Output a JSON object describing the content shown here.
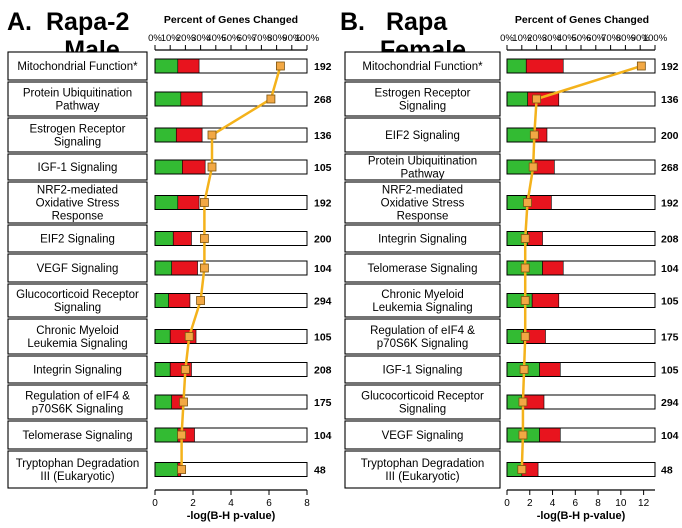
{
  "colors": {
    "up": "#33bb33",
    "down": "#e8141e",
    "line": "#f4b21b",
    "marker": "#f2a844",
    "marker_edge": "#7a5210",
    "outline": "#000000"
  },
  "chart_data": [
    {
      "type": "bar",
      "panel_label": "A.",
      "title_line1": "Rapa-2",
      "title_line2": "Male",
      "top_axis_label": "Percent of Genes Changed",
      "top_ticks": [
        "0%",
        "10%",
        "20%",
        "30%",
        "40%",
        "50%",
        "60%",
        "70%",
        "80%",
        "90%",
        "100%"
      ],
      "xlabel": "-log(B-H p-value)",
      "bottom_ticks": [
        "0",
        "2",
        "4",
        "6",
        "8"
      ],
      "bottom_xlim": [
        0,
        8
      ],
      "grid": false,
      "categories": [
        "Mitochondrial Function*",
        "Protein Ubiquitination Pathway",
        "Estrogen Receptor Signaling",
        "IGF-1 Signaling",
        "NRF2-mediated Oxidative Stress Response",
        "EIF2 Signaling",
        "VEGF Signaling",
        "Glucocorticoid Receptor Signaling",
        "Chronic Myeloid Leukemia Signaling",
        "Integrin Signaling",
        "Regulation of eIF4 & p70S6K Signaling",
        "Telomerase Signaling",
        "Tryptophan Degradation III (Eukaryotic)"
      ],
      "category_lines": [
        [
          "Mitochondrial Function*"
        ],
        [
          "Protein Ubiquitination",
          "Pathway"
        ],
        [
          "Estrogen Receptor",
          "Signaling"
        ],
        [
          "IGF-1 Signaling"
        ],
        [
          "NRF2-mediated",
          "Oxidative Stress",
          "Response"
        ],
        [
          "EIF2 Signaling"
        ],
        [
          "VEGF Signaling"
        ],
        [
          "Glucocorticoid Receptor",
          "Signaling"
        ],
        [
          "Chronic Myeloid",
          "Leukemia Signaling"
        ],
        [
          "Integrin Signaling"
        ],
        [
          "Regulation of eIF4 &",
          "p70S6K Signaling"
        ],
        [
          "Telomerase Signaling"
        ],
        [
          "Tryptophan Degradation",
          "III (Eukaryotic)"
        ]
      ],
      "gene_counts": [
        192,
        268,
        136,
        105,
        192,
        200,
        104,
        294,
        105,
        208,
        175,
        104,
        48
      ],
      "series": [
        {
          "name": "up",
          "unit": "percent",
          "values": [
            15,
            17,
            14,
            18,
            15,
            12,
            11,
            9,
            10,
            10,
            11,
            15,
            15
          ]
        },
        {
          "name": "down",
          "unit": "percent",
          "values": [
            14,
            14,
            17,
            15,
            14,
            12,
            17,
            14,
            17,
            14,
            8,
            11,
            2
          ]
        },
        {
          "name": "neg_log_p",
          "unit": "-log(B-H p-value)",
          "values": [
            6.6,
            6.1,
            3.0,
            3.0,
            2.6,
            2.6,
            2.6,
            2.4,
            1.8,
            1.6,
            1.5,
            1.4,
            1.4
          ]
        }
      ]
    },
    {
      "type": "bar",
      "panel_label": "B.",
      "title_line1": "Rapa",
      "title_line2": "Female",
      "top_axis_label": "Percent of Genes Changed",
      "top_ticks": [
        "0%",
        "10%",
        "20%",
        "30%",
        "40%",
        "50%",
        "60%",
        "70%",
        "80%",
        "90%",
        "100%"
      ],
      "xlabel": "-log(B-H p-value)",
      "bottom_ticks": [
        "0",
        "2",
        "4",
        "6",
        "8",
        "10",
        "12"
      ],
      "bottom_xlim": [
        0,
        13
      ],
      "grid": false,
      "categories": [
        "Mitochondrial Function*",
        "Estrogen Receptor Signaling",
        "EIF2 Signaling",
        "Protein Ubiquitination Pathway",
        "NRF2-mediated Oxidative Stress Response",
        "Integrin Signaling",
        "Telomerase Signaling",
        "Chronic Myeloid Leukemia Signaling",
        "Regulation of eIF4 & p70S6K Signaling",
        "IGF-1 Signaling",
        "Glucocorticoid Receptor Signaling",
        "VEGF Signaling",
        "Tryptophan Degradation III (Eukaryotic)"
      ],
      "category_lines": [
        [
          "Mitochondrial Function*"
        ],
        [
          "Estrogen Receptor",
          "Signaling"
        ],
        [
          "EIF2 Signaling"
        ],
        [
          "Protein Ubiquitination",
          "Pathway"
        ],
        [
          "NRF2-mediated",
          "Oxidative Stress",
          "Response"
        ],
        [
          "Integrin Signaling"
        ],
        [
          "Telomerase Signaling"
        ],
        [
          "Chronic Myeloid",
          "Leukemia Signaling"
        ],
        [
          "Regulation of eIF4 &",
          "p70S6K Signaling"
        ],
        [
          "IGF-1 Signaling"
        ],
        [
          "Glucocorticoid Receptor",
          "Signaling"
        ],
        [
          "VEGF Signaling"
        ],
        [
          "Tryptophan Degradation",
          "III (Eukaryotic)"
        ]
      ],
      "gene_counts": [
        192,
        136,
        200,
        268,
        192,
        208,
        104,
        105,
        175,
        105,
        294,
        104,
        48
      ],
      "series": [
        {
          "name": "up",
          "unit": "percent",
          "values": [
            13,
            14,
            18,
            17,
            13,
            14,
            24,
            17,
            11,
            22,
            10,
            22,
            10
          ]
        },
        {
          "name": "down",
          "unit": "percent",
          "values": [
            25,
            21,
            9,
            15,
            17,
            10,
            14,
            18,
            15,
            14,
            15,
            14,
            11
          ]
        },
        {
          "name": "neg_log_p",
          "unit": "-log(B-H p-value)",
          "values": [
            11.8,
            2.6,
            2.4,
            2.3,
            1.8,
            1.6,
            1.6,
            1.6,
            1.6,
            1.5,
            1.4,
            1.4,
            1.3
          ]
        }
      ]
    }
  ]
}
